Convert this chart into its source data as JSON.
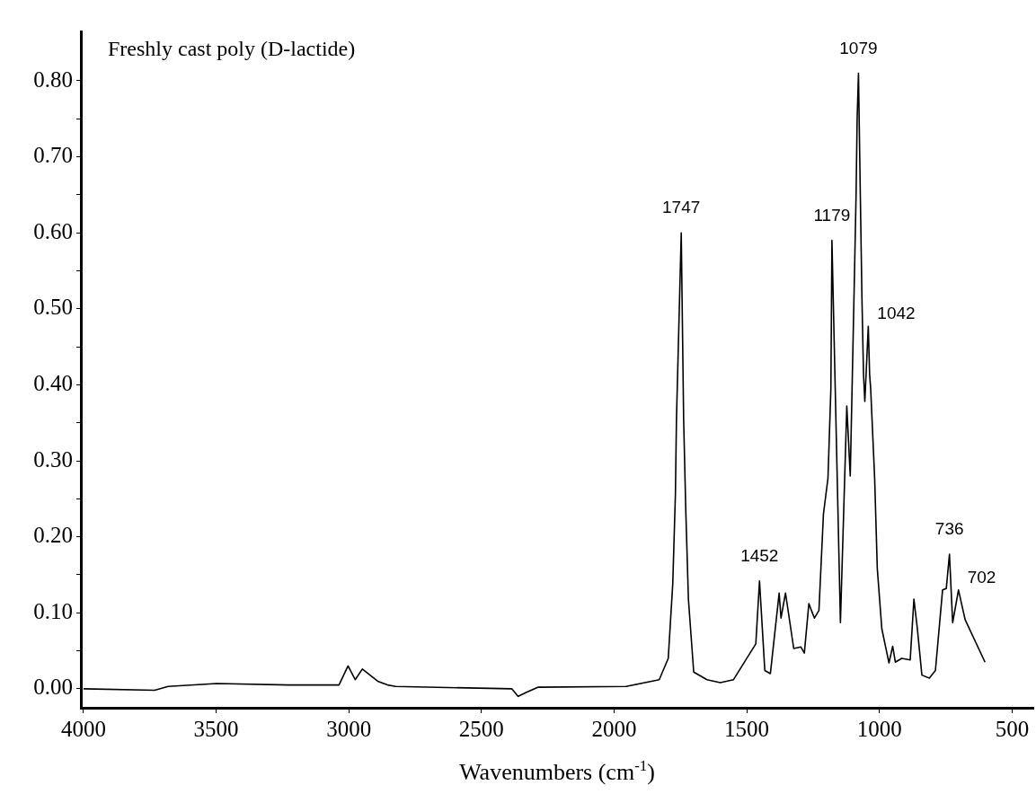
{
  "chart_data": {
    "type": "line",
    "title": "Freshly cast poly (D-lactide)",
    "xlabel": "Wavenumbers (cm$^{-1}$)",
    "xlim": [
      4010,
      420
    ],
    "xticks": [
      4000,
      3500,
      3000,
      2500,
      2000,
      1500,
      1000,
      500
    ],
    "ylim": [
      -0.025,
      0.865
    ],
    "yticks": [
      {
        "value": 0,
        "label": "0.00"
      },
      {
        "value": 0.05,
        "label": null
      },
      {
        "value": 0.1,
        "label": "0.10"
      },
      {
        "value": 0.15,
        "label": null
      },
      {
        "value": 0.2,
        "label": "0.20"
      },
      {
        "value": 0.25,
        "label": null
      },
      {
        "value": 0.3,
        "label": "0.30"
      },
      {
        "value": 0.35,
        "label": null
      },
      {
        "value": 0.4,
        "label": "0.40"
      },
      {
        "value": 0.45,
        "label": null
      },
      {
        "value": 0.5,
        "label": "0.50"
      },
      {
        "value": 0.55,
        "label": null
      },
      {
        "value": 0.6,
        "label": "0.60"
      },
      {
        "value": 0.65,
        "label": null
      },
      {
        "value": 0.7,
        "label": "0.70"
      },
      {
        "value": 0.75,
        "label": null
      },
      {
        "value": 0.8,
        "label": "0.80"
      }
    ],
    "grid": false,
    "legend": false,
    "marker": "none",
    "line_style": "solid",
    "series": [
      {
        "color": "#000000",
        "x": [
          4000,
          3732,
          3681,
          3498,
          3227,
          3037,
          3003,
          2976,
          2949,
          2891,
          2854,
          2823,
          2386,
          2362,
          2332,
          2288,
          1955,
          1830,
          1796,
          1779,
          1769,
          1765,
          1747,
          1738,
          1730,
          1720,
          1700,
          1650,
          1600,
          1550,
          1466,
          1452,
          1432,
          1411,
          1378,
          1371,
          1354,
          1323,
          1296,
          1283,
          1266,
          1245,
          1228,
          1211,
          1194,
          1183,
          1179,
          1147,
          1123,
          1110,
          1093,
          1088,
          1084,
          1079,
          1072,
          1066,
          1060,
          1055,
          1042,
          1037,
          1033,
          1018,
          1008,
          991,
          964,
          950,
          940,
          916,
          884,
          870,
          857,
          840,
          812,
          789,
          762,
          748,
          736,
          724,
          702,
          677,
          602
        ],
        "values": [
          0,
          -0.002,
          0.003,
          0.007,
          0.005,
          0.005,
          0.03,
          0.012,
          0.026,
          0.01,
          0.005,
          0.003,
          0,
          -0.01,
          -0.005,
          0.002,
          0.003,
          0.012,
          0.04,
          0.138,
          0.256,
          0.355,
          0.6,
          0.355,
          0.236,
          0.118,
          0.022,
          0.012,
          0.008,
          0.012,
          0.059,
          0.142,
          0.024,
          0.02,
          0.126,
          0.093,
          0.126,
          0.053,
          0.055,
          0.047,
          0.112,
          0.093,
          0.103,
          0.23,
          0.277,
          0.395,
          0.59,
          0.087,
          0.372,
          0.28,
          0.564,
          0.65,
          0.75,
          0.81,
          0.65,
          0.516,
          0.414,
          0.378,
          0.477,
          0.414,
          0.395,
          0.277,
          0.158,
          0.079,
          0.034,
          0.056,
          0.035,
          0.04,
          0.038,
          0.118,
          0.079,
          0.018,
          0.014,
          0.024,
          0.13,
          0.132,
          0.177,
          0.087,
          0.13,
          0.091,
          0.035
        ]
      }
    ],
    "annotations": [
      {
        "text": "1747",
        "x": 1747,
        "y": 0.6
      },
      {
        "text": "1452",
        "x": 1452,
        "y": 0.142
      },
      {
        "text": "1179",
        "x": 1179,
        "y": 0.59
      },
      {
        "text": "1079",
        "x": 1079,
        "y": 0.81
      },
      {
        "text": "1042",
        "x": 1042,
        "y": 0.477
      },
      {
        "text": "736",
        "x": 736,
        "y": 0.177
      },
      {
        "text": "702",
        "x": 702,
        "y": 0.13
      }
    ]
  }
}
